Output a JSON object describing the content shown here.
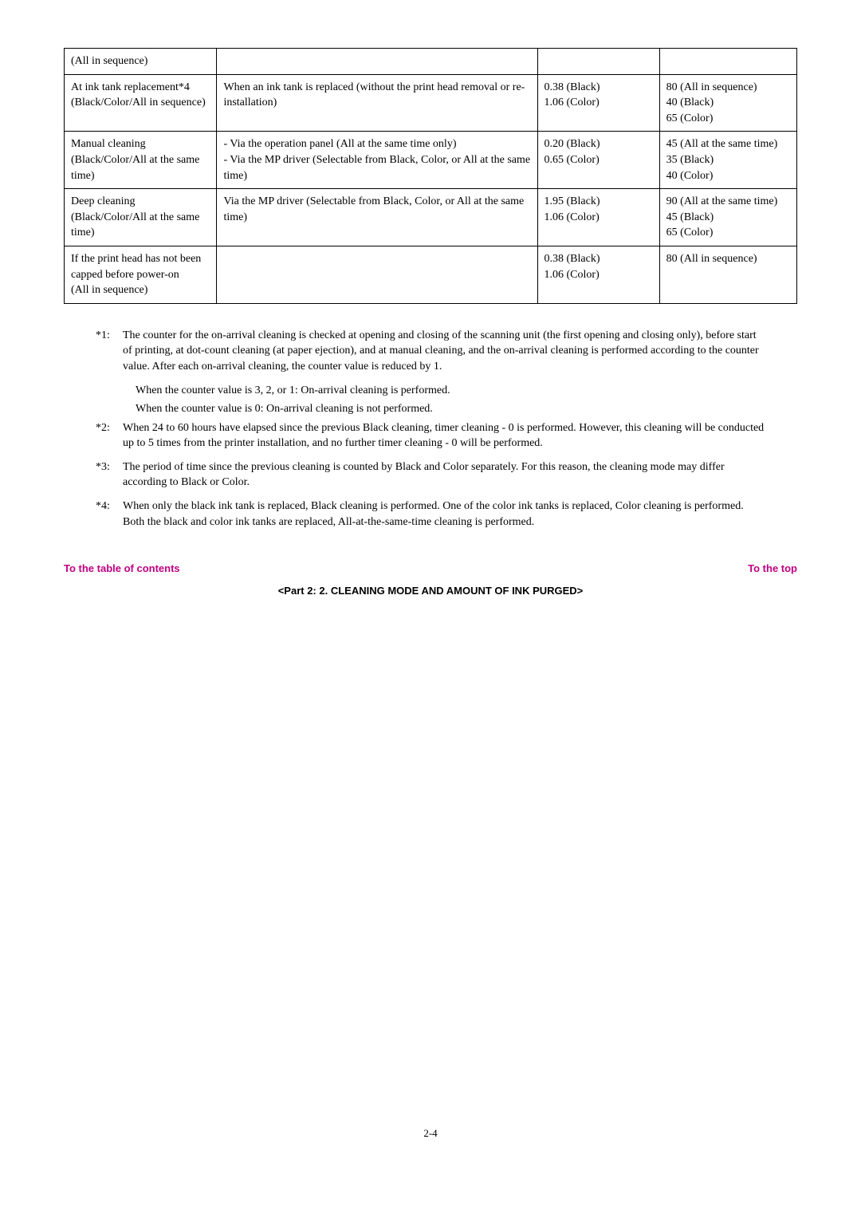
{
  "table": {
    "rows": [
      {
        "c1": "(All in sequence)",
        "c2": "",
        "c3": "",
        "c4": ""
      },
      {
        "c1": "At ink tank replacement*4\n(Black/Color/All in sequence)",
        "c2": "When an ink tank is replaced (without the print head removal or re-installation)",
        "c3": "0.38 (Black)\n1.06 (Color)",
        "c4": "80 (All in sequence)\n40 (Black)\n65 (Color)"
      },
      {
        "c1": "Manual cleaning\n(Black/Color/All at the same time)",
        "c2": "- Via the operation panel (All at the same time only)\n- Via the MP driver (Selectable from Black, Color, or All at the same time)",
        "c3": "0.20 (Black)\n0.65 (Color)",
        "c4": "45 (All at the same time)\n35 (Black)\n40 (Color)"
      },
      {
        "c1": "Deep cleaning\n(Black/Color/All at the same time)",
        "c2": "Via the MP driver (Selectable from Black, Color, or All at the same time)",
        "c3": "1.95 (Black)\n1.06 (Color)",
        "c4": "90 (All at the same time)\n45 (Black)\n65 (Color)"
      },
      {
        "c1": "If the print head has not been capped before power-on\n(All in sequence)",
        "c2": "",
        "c3": "0.38 (Black)\n1.06 (Color)",
        "c4": "80 (All in sequence)"
      }
    ]
  },
  "notes": {
    "n1_label": "*1:",
    "n1_body": "The counter for the on-arrival cleaning is checked at opening and closing of the scanning unit (the first opening and closing only), before start of printing, at dot-count cleaning (at paper ejection), and at manual cleaning, and the on-arrival cleaning is performed according to the counter value. After each on-arrival cleaning, the counter value is reduced by 1.",
    "n1_sub1": "When the counter value is 3, 2, or 1:  On-arrival cleaning is performed.",
    "n1_sub2": "When the counter value is 0:  On-arrival cleaning is not performed.",
    "n2_label": "*2:",
    "n2_body": "When 24 to 60 hours have elapsed since the previous Black cleaning, timer cleaning - 0 is performed. However, this cleaning will be conducted up to 5 times from the printer installation, and no further timer cleaning - 0 will be performed.",
    "n3_label": "*3:",
    "n3_body": "The period of time since the previous cleaning is counted by Black and Color separately. For this reason, the cleaning mode may differ according to Black or Color.",
    "n4_label": "*4:",
    "n4_body": "When only the black ink tank is replaced, Black cleaning is performed. One of the color ink tanks is replaced, Color cleaning is performed. Both the black and color ink tanks are replaced, All-at-the-same-time cleaning is performed."
  },
  "links": {
    "toc": "To the table of contents",
    "top": "To the top"
  },
  "part_title": "<Part 2:  2. CLEANING MODE AND AMOUNT OF INK PURGED>",
  "page_number": "2-4",
  "colors": {
    "link_color": "#c00080",
    "text_color": "#000000",
    "border_color": "#000000"
  }
}
